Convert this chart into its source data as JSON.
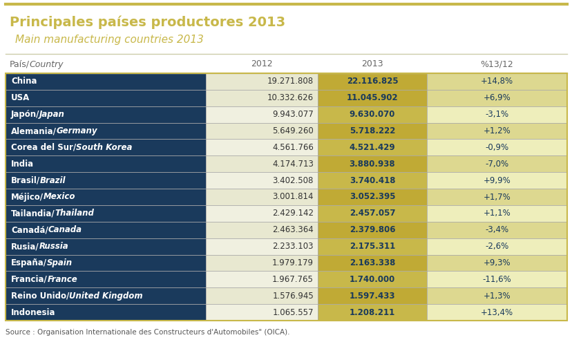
{
  "title_es": "Principales países productores 2013",
  "title_en": "Main manufacturing countries 2013",
  "header": [
    "País/​Country",
    "2012",
    "2013",
    "%13/12"
  ],
  "rows": [
    {
      "country_bold": "China",
      "country_italic": "",
      "val2012": "19.271.808",
      "val2013": "22.116.825",
      "pct": "+14,8%"
    },
    {
      "country_bold": "USA",
      "country_italic": "",
      "val2012": "10.332.626",
      "val2013": "11.045.902",
      "pct": "+6,9%"
    },
    {
      "country_bold": "Japón/",
      "country_italic": "Japan",
      "val2012": "9.943.077",
      "val2013": "9.630.070",
      "pct": "-3,1%"
    },
    {
      "country_bold": "Alemania/",
      "country_italic": "Germany",
      "val2012": "5.649.260",
      "val2013": "5.718.222",
      "pct": "+1,2%"
    },
    {
      "country_bold": "Corea del Sur/",
      "country_italic": "South Korea",
      "val2012": "4.561.766",
      "val2013": "4.521.429",
      "pct": "-0,9%"
    },
    {
      "country_bold": "India",
      "country_italic": "",
      "val2012": "4.174.713",
      "val2013": "3.880.938",
      "pct": "-7,0%"
    },
    {
      "country_bold": "Brasil/",
      "country_italic": "Brazil",
      "val2012": "3.402.508",
      "val2013": "3.740.418",
      "pct": "+9,9%"
    },
    {
      "country_bold": "Méjico/",
      "country_italic": "Mexico",
      "val2012": "3.001.814",
      "val2013": "3.052.395",
      "pct": "+1,7%"
    },
    {
      "country_bold": "Tailandia/",
      "country_italic": "Thailand",
      "val2012": "2.429.142",
      "val2013": "2.457.057",
      "pct": "+1,1%"
    },
    {
      "country_bold": "Canadá/",
      "country_italic": "Canada",
      "val2012": "2.463.364",
      "val2013": "2.379.806",
      "pct": "-3,4%"
    },
    {
      "country_bold": "Rusia/",
      "country_italic": "Russia",
      "val2012": "2.233.103",
      "val2013": "2.175.311",
      "pct": "-2,6%"
    },
    {
      "country_bold": "España/",
      "country_italic": "Spain",
      "val2012": "1.979.179",
      "val2013": "2.163.338",
      "pct": "+9,3%"
    },
    {
      "country_bold": "Francia/",
      "country_italic": "France",
      "val2012": "1.967.765",
      "val2013": "1.740.000",
      "pct": "-11,6%"
    },
    {
      "country_bold": "Reino Unido/",
      "country_italic": "United Kingdom",
      "val2012": "1.576.945",
      "val2013": "1.597.433",
      "pct": "+1,3%"
    },
    {
      "country_bold": "Indonesia",
      "country_italic": "",
      "val2012": "1.065.557",
      "val2013": "1.208.211",
      "pct": "+13,4%"
    }
  ],
  "title_color_es": "#c8b84a",
  "title_color_en": "#c8b84a",
  "title_top_border": "#c8b84a",
  "header_text_color": "#666666",
  "row_bg_dark": "#1a3a5c",
  "row_bg_light": "#eeeedd",
  "col2013_bg_dark": "#b8a830",
  "col2013_bg_light": "#c8b84a",
  "col_pct_bg_dark": "#d8d090",
  "col_pct_bg_light": "#eeeebb",
  "col2012_bg_light": "#f8f8e8",
  "dark_row_text": "#ffffff",
  "light_row_text": "#1a3a5c",
  "source_text": "Source : Organisation Internationale des Constructeurs d'Automobiles\" (OICA).",
  "border_color": "#bbbbaa",
  "outer_border_color": "#c8b84a",
  "dark_rows": [
    0,
    1,
    2,
    3,
    4,
    5,
    6,
    7,
    8,
    9,
    10,
    11,
    12,
    13,
    14
  ]
}
